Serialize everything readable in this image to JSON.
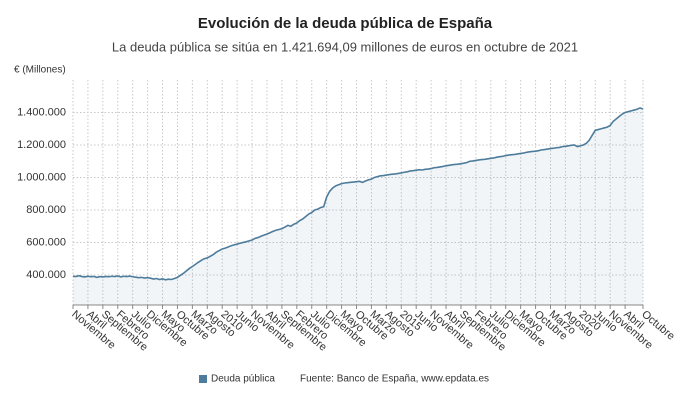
{
  "chart_data": {
    "type": "line",
    "title": "Evolución de la deuda pública de España",
    "subtitle": "La deuda pública se sitúa en 1.421.694,09 millones de euros en octubre de 2021",
    "y_label": "€ (Millones)",
    "source": "Fuente: Banco de España, www.epdata.es",
    "grid": true,
    "area": true,
    "ylim": [
      215000,
      1600000
    ],
    "yticks": [
      {
        "value": 400000,
        "label": "400.000"
      },
      {
        "value": 600000,
        "label": "600.000"
      },
      {
        "value": 800000,
        "label": "800.000"
      },
      {
        "value": 1000000,
        "label": "1.000.000"
      },
      {
        "value": 1200000,
        "label": "1.200.000"
      },
      {
        "value": 1400000,
        "label": "1.400.000"
      }
    ],
    "categories": [
      "Noviembre",
      null,
      null,
      null,
      null,
      "Abril",
      null,
      null,
      null,
      null,
      "Septiembre",
      null,
      null,
      null,
      null,
      "Febrero",
      null,
      null,
      null,
      null,
      "Julio",
      null,
      null,
      null,
      null,
      "Diciembre",
      null,
      null,
      null,
      null,
      "Mayo",
      null,
      null,
      null,
      null,
      "Octubre",
      null,
      null,
      null,
      null,
      "Marzo",
      null,
      null,
      null,
      null,
      "Agosto",
      null,
      null,
      null,
      null,
      "2010",
      null,
      null,
      null,
      null,
      "Junio",
      null,
      null,
      null,
      null,
      "Noviembre",
      null,
      null,
      null,
      null,
      "Abril",
      null,
      null,
      null,
      null,
      "Septiembre",
      null,
      null,
      null,
      null,
      "Febrero",
      null,
      null,
      null,
      null,
      "Julio",
      null,
      null,
      null,
      null,
      "Diciembre",
      null,
      null,
      null,
      null,
      "Mayo",
      null,
      null,
      null,
      null,
      "Octubre",
      null,
      null,
      null,
      null,
      "Marzo",
      null,
      null,
      null,
      null,
      "Agosto",
      null,
      null,
      null,
      null,
      "2015",
      null,
      null,
      null,
      null,
      "Junio",
      null,
      null,
      null,
      null,
      "Noviembre",
      null,
      null,
      null,
      null,
      "Abril",
      null,
      null,
      null,
      null,
      "Septiembre",
      null,
      null,
      null,
      null,
      "Febrero",
      null,
      null,
      null,
      null,
      "Julio",
      null,
      null,
      null,
      null,
      "Diciembre",
      null,
      null,
      null,
      null,
      "Mayo",
      null,
      null,
      null,
      null,
      "Octubre",
      null,
      null,
      null,
      null,
      "Marzo",
      null,
      null,
      null,
      null,
      "Agosto",
      null,
      null,
      null,
      null,
      "2020",
      null,
      null,
      null,
      null,
      "Junio",
      null,
      null,
      null,
      null,
      "Noviembre",
      null,
      null,
      null,
      null,
      "Abril",
      null,
      null,
      null,
      null,
      null,
      "Octubre"
    ],
    "series": [
      {
        "name": "Deuda pública",
        "color": "#4d7c9c",
        "values": [
          392000,
          390000,
          395000,
          390000,
          388000,
          392000,
          389000,
          391000,
          385000,
          390000,
          388000,
          391000,
          389000,
          392000,
          390000,
          394000,
          388000,
          392000,
          390000,
          393000,
          389000,
          386000,
          383000,
          385000,
          381000,
          384000,
          380000,
          375000,
          378000,
          372000,
          376000,
          370000,
          374000,
          372000,
          378000,
          385000,
          398000,
          410000,
          425000,
          440000,
          452000,
          465000,
          478000,
          490000,
          500000,
          505000,
          515000,
          525000,
          540000,
          550000,
          560000,
          565000,
          572000,
          580000,
          585000,
          590000,
          595000,
          600000,
          604000,
          610000,
          615000,
          625000,
          630000,
          638000,
          645000,
          652000,
          660000,
          668000,
          675000,
          680000,
          685000,
          695000,
          705000,
          700000,
          712000,
          720000,
          735000,
          745000,
          760000,
          775000,
          785000,
          800000,
          805000,
          815000,
          820000,
          880000,
          915000,
          935000,
          948000,
          955000,
          962000,
          966000,
          968000,
          970000,
          972000,
          974000,
          976000,
          970000,
          978000,
          985000,
          990000,
          1000000,
          1005000,
          1010000,
          1012000,
          1015000,
          1018000,
          1020000,
          1022000,
          1025000,
          1028000,
          1032000,
          1035000,
          1040000,
          1042000,
          1045000,
          1048000,
          1046000,
          1050000,
          1052000,
          1055000,
          1060000,
          1062000,
          1065000,
          1068000,
          1072000,
          1075000,
          1078000,
          1080000,
          1082000,
          1085000,
          1088000,
          1092000,
          1100000,
          1102000,
          1105000,
          1108000,
          1110000,
          1112000,
          1115000,
          1118000,
          1120000,
          1125000,
          1128000,
          1130000,
          1135000,
          1138000,
          1140000,
          1142000,
          1145000,
          1148000,
          1150000,
          1155000,
          1158000,
          1160000,
          1162000,
          1165000,
          1170000,
          1172000,
          1175000,
          1178000,
          1180000,
          1183000,
          1185000,
          1190000,
          1192000,
          1195000,
          1198000,
          1200000,
          1190000,
          1195000,
          1200000,
          1210000,
          1230000,
          1260000,
          1290000,
          1295000,
          1300000,
          1305000,
          1310000,
          1320000,
          1345000,
          1360000,
          1375000,
          1390000,
          1400000,
          1405000,
          1410000,
          1415000,
          1420000,
          1428000,
          1421694.09
        ]
      }
    ]
  }
}
